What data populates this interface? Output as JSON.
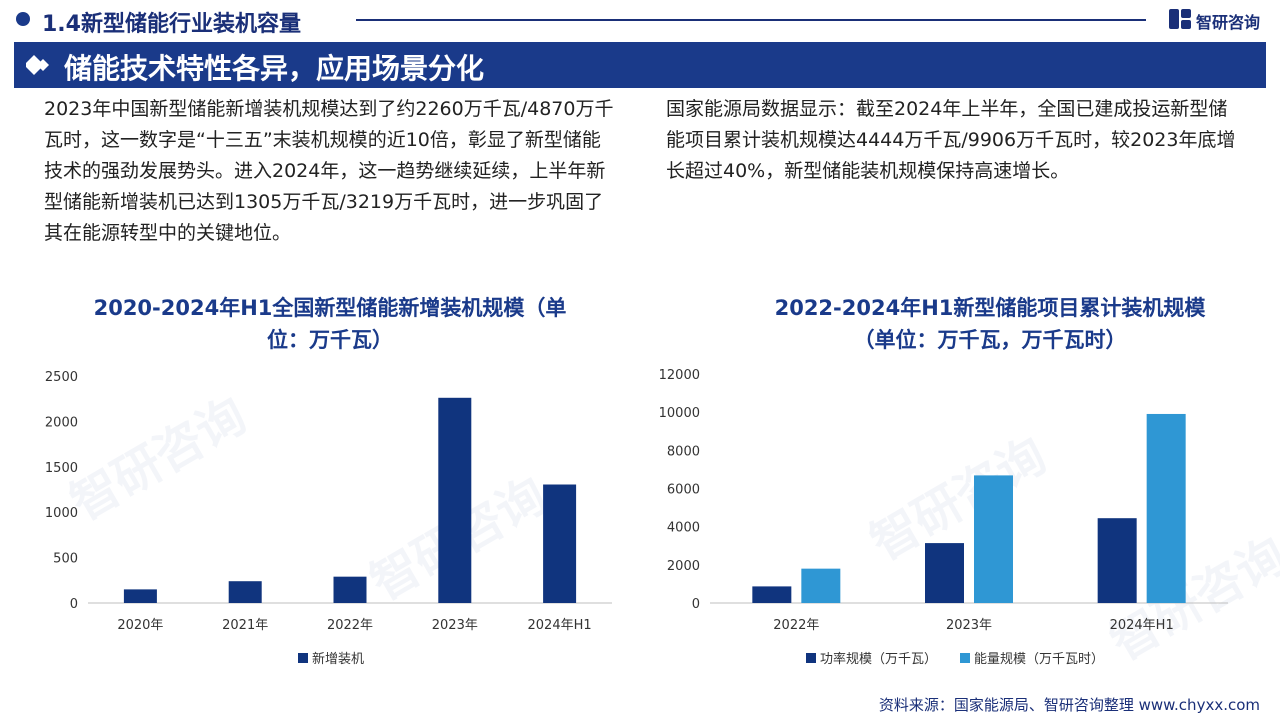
{
  "header": {
    "section_title": "1.4新型储能行业装机容量",
    "logo_text": "智研咨询",
    "banner_title": "储能技术特性各异，应用场景分化"
  },
  "paragraphs": {
    "left": "2023年中国新型储能新增装机规模达到了约2260万千瓦/4870万千瓦时，这一数字是“十三五”末装机规模的近10倍，彰显了新型储能技术的强劲发展势头。进入2024年，这一趋势继续延续，上半年新型储能新增装机已达到1305万千瓦/3219万千瓦时，进一步巩固了其在能源转型中的关键地位。",
    "right": "国家能源局数据显示：截至2024年上半年，全国已建成投运新型储能项目累计装机规模达4444万千瓦/9906万千瓦时，较2023年底增长超过40%，新型储能装机规模保持高速增长。"
  },
  "source": "资料来源：国家能源局、智研咨询整理   www.chyxx.com",
  "watermark": "智研咨询",
  "colors": {
    "dark_blue": "#10347e",
    "light_blue": "#2f97d4",
    "accent": "#1a3a8a"
  },
  "chart_data": [
    {
      "type": "bar",
      "title": "2020-2024年H1全国新型储能新增装机规模（单位：万千瓦）",
      "title_lines": [
        "2020-2024年H1全国新型储能新增装机规模（单",
        "位：万千瓦）"
      ],
      "categories": [
        "2020年",
        "2021年",
        "2022年",
        "2023年",
        "2024年H1"
      ],
      "series": [
        {
          "name": "新增装机",
          "values": [
            150,
            240,
            290,
            2260,
            1305
          ]
        }
      ],
      "ylim": [
        0,
        2500
      ],
      "yticks": [
        0,
        500,
        1000,
        1500,
        2000,
        2500
      ],
      "grid": false,
      "legend": "bottom"
    },
    {
      "type": "bar",
      "title": "2022-2024年H1新型储能项目累计装机规模（单位：万千瓦，万千瓦时）",
      "title_lines": [
        "2022-2024年H1新型储能项目累计装机规模",
        "（单位：万千瓦，万千瓦时）"
      ],
      "categories": [
        "2022年",
        "2023年",
        "2024年H1"
      ],
      "series": [
        {
          "name": "功率规模（万千瓦）",
          "values": [
            870,
            3139,
            4444
          ]
        },
        {
          "name": "能量规模（万千瓦时）",
          "values": [
            1800,
            6687,
            9906
          ]
        }
      ],
      "ylim": [
        0,
        12000
      ],
      "yticks": [
        0,
        2000,
        4000,
        6000,
        8000,
        10000,
        12000
      ],
      "grid": false,
      "legend": "bottom"
    }
  ]
}
